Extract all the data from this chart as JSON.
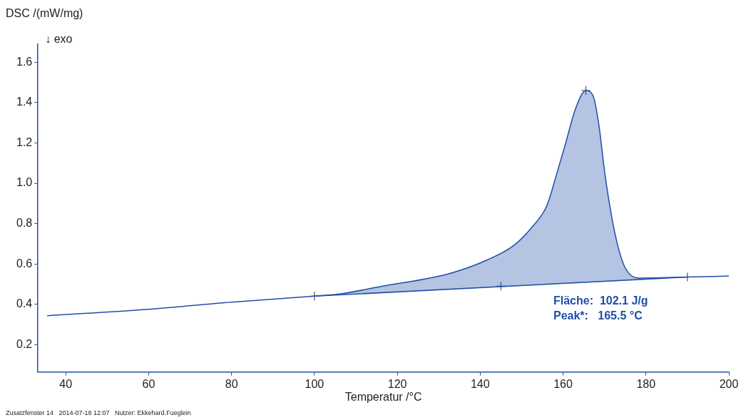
{
  "chart_data": {
    "type": "line",
    "xlabel": "Temperatur /°C",
    "ylabel": "DSC /(mW/mg)",
    "xlim": [
      33.3,
      200
    ],
    "xticks": [
      40,
      60,
      80,
      100,
      120,
      140,
      160,
      180,
      200
    ],
    "ylim": [
      0.064,
      1.69
    ],
    "yticks": [
      0.2,
      0.4,
      0.6,
      0.8,
      {
        "value": 1,
        "label": "1.0"
      },
      1.2,
      1.4,
      1.6
    ],
    "grid": false,
    "legend": false,
    "marker": "none",
    "line_style": "solid",
    "annotations": [
      "↓ exo",
      "Fläche:  102.1 J/g",
      "Peak*:   165.5 °C",
      "Zusatzfenster 14   2014-07-18 12:07   Nutzer: Ekkehard.Fueglein"
    ],
    "series": [
      {
        "type": "line",
        "color": "#1f4ea8",
        "x": [
          35.5,
          60,
          80,
          100,
          105.8,
          116.5,
          132.2,
          141.7,
          148,
          152.4,
          156.1,
          158.5,
          160.5,
          163,
          165.5,
          167.3,
          168.7,
          170,
          171.5,
          173.2,
          175,
          178.1,
          190,
          200
        ],
        "values": [
          0.343,
          0.375,
          0.41,
          0.44,
          0.45,
          0.49,
          0.55,
          0.62,
          0.69,
          0.78,
          0.89,
          1.05,
          1.19,
          1.37,
          1.46,
          1.43,
          1.28,
          1.06,
          0.86,
          0.69,
          0.58,
          0.53,
          0.535,
          0.54
        ],
        "upper": [
          null,
          null,
          null,
          0.44,
          0.45,
          0.49,
          0.55,
          0.62,
          0.69,
          0.78,
          0.89,
          1.05,
          1.19,
          1.37,
          1.46,
          1.43,
          1.28,
          1.06,
          0.86,
          0.69,
          0.58,
          0.53,
          0.535,
          null
        ],
        "lower": [
          null,
          null,
          null,
          0.44,
          0.446,
          0.457,
          0.473,
          0.482,
          0.488,
          0.493,
          0.496,
          0.499,
          0.501,
          0.503,
          0.506,
          0.508,
          0.509,
          0.511,
          0.512,
          0.514,
          0.516,
          0.519,
          0.535,
          null
        ]
      },
      {
        "type": "line",
        "color": "#1f4ea8",
        "x": [
          100,
          190
        ],
        "values": [
          0.44,
          0.535
        ]
      },
      {
        "type": "scatter",
        "color": "#333333",
        "marker": "cross",
        "x": [
          100,
          145,
          165.5,
          190
        ],
        "values": [
          0.44,
          0.49,
          1.46,
          0.535
        ]
      }
    ]
  }
}
